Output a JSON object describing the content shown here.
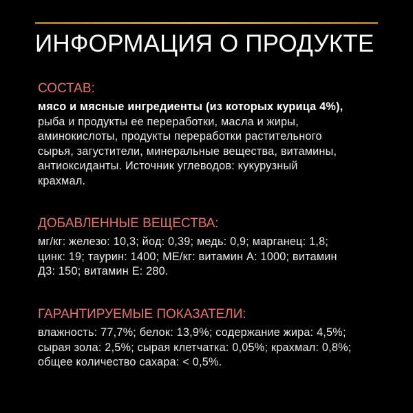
{
  "title": "ИНФОРМАЦИЯ О ПРОДУКТЕ",
  "colors": {
    "background": "#000000",
    "heading": "#e8736e",
    "rule": "#c8973f",
    "text": "#ececec"
  },
  "sections": [
    {
      "heading": "СОСТАВ:",
      "bold_line": "мясо и мясные ингредиенты (из которых курица 4%),",
      "lines": [
        "рыба и продукты ее переработки, масла и жиры,",
        "аминокислоты, продукты переработки растительного",
        "сырья, загустители, минеральные вещества, витамины,",
        "антиоксиданты. Источник углеводов: кукурузный",
        "крахмал."
      ]
    },
    {
      "heading": "ДОБАВЛЕННЫЕ ВЕЩЕСТВА:",
      "lines": [
        "мг/кг: железо: 10,3; йод: 0,39; медь: 0,9; марганец: 1,8;",
        "цинк: 19; таурин: 1400; МЕ/кг: витамин А: 1000; витамин",
        "Д3: 150; витамин Е: 280."
      ]
    },
    {
      "heading": "ГАРАНТИРУЕМЫЕ ПОКАЗАТЕЛИ:",
      "lines": [
        "влажность: 77,7%; белок: 13,9%; содержание жира: 4,5%;",
        "сырая зола: 2,5%; сырая клетчатка: 0,05%; крахмал: 0,8%;",
        "общее количество сахара: < 0,5%."
      ]
    }
  ]
}
